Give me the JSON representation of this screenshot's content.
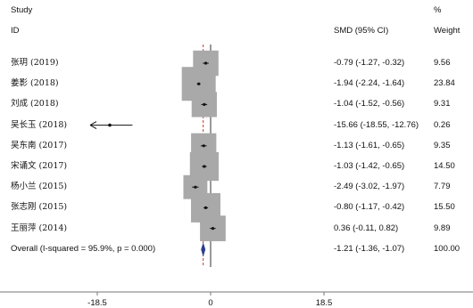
{
  "header": {
    "study_title": "Study",
    "id_label": "ID",
    "smd_label": "SMD (95% CI)",
    "pct_label": "%",
    "weight_label": "Weight"
  },
  "chart_data": {
    "type": "forest",
    "xlim": [
      -22,
      25
    ],
    "x_ticks": [
      -18.5,
      0,
      18.5
    ],
    "x_tick_labels": [
      "-18.5",
      "0",
      "18.5"
    ],
    "null_line": 0,
    "studies": [
      {
        "label": "张玥 (2019)",
        "smd": -0.79,
        "lo": -1.27,
        "hi": -0.32,
        "ci_text": "-0.79 (-1.27, -0.32)",
        "weight": 9.56,
        "weight_text": "9.56"
      },
      {
        "label": "姜影 (2018)",
        "smd": -1.94,
        "lo": -2.24,
        "hi": -1.64,
        "ci_text": "-1.94 (-2.24, -1.64)",
        "weight": 23.84,
        "weight_text": "23.84"
      },
      {
        "label": "刘成 (2018)",
        "smd": -1.04,
        "lo": -1.52,
        "hi": -0.56,
        "ci_text": "-1.04 (-1.52, -0.56)",
        "weight": 9.31,
        "weight_text": "9.31"
      },
      {
        "label": "吴长玉 (2018)",
        "smd": -15.66,
        "lo": -18.55,
        "hi": -12.76,
        "ci_text": "-15.66 (-18.55, -12.76)",
        "weight": 0.26,
        "weight_text": "0.26",
        "arrow_left": true
      },
      {
        "label": "吴东南 (2017)",
        "smd": -1.13,
        "lo": -1.61,
        "hi": -0.65,
        "ci_text": "-1.13 (-1.61, -0.65)",
        "weight": 9.35,
        "weight_text": "9.35"
      },
      {
        "label": "宋诵文 (2017)",
        "smd": -1.03,
        "lo": -1.42,
        "hi": -0.65,
        "ci_text": "-1.03 (-1.42, -0.65)",
        "weight": 14.5,
        "weight_text": "14.50"
      },
      {
        "label": "杨小兰 (2015)",
        "smd": -2.49,
        "lo": -3.02,
        "hi": -1.97,
        "ci_text": "-2.49 (-3.02, -1.97)",
        "weight": 7.79,
        "weight_text": "7.79"
      },
      {
        "label": "张志刚 (2015)",
        "smd": -0.8,
        "lo": -1.17,
        "hi": -0.42,
        "ci_text": "-0.80 (-1.17, -0.42)",
        "weight": 15.5,
        "weight_text": "15.50"
      },
      {
        "label": "王丽萍 (2014)",
        "smd": 0.36,
        "lo": -0.11,
        "hi": 0.82,
        "ci_text": "0.36 (-0.11, 0.82)",
        "weight": 9.89,
        "weight_text": "9.89"
      }
    ],
    "overall": {
      "label": "Overall  (I-squared = 95.9%, p = 0.000)",
      "smd": -1.21,
      "lo": -1.36,
      "hi": -1.07,
      "ci_text": "-1.21 (-1.36, -1.07)",
      "weight": 100.0,
      "weight_text": "100.00"
    },
    "colors": {
      "box": "#a9a9a9",
      "point": "#111111",
      "null_line": "#333333",
      "overall_line": "#c0392b",
      "diamond": "#2c3e8c",
      "axis": "#777777"
    }
  }
}
